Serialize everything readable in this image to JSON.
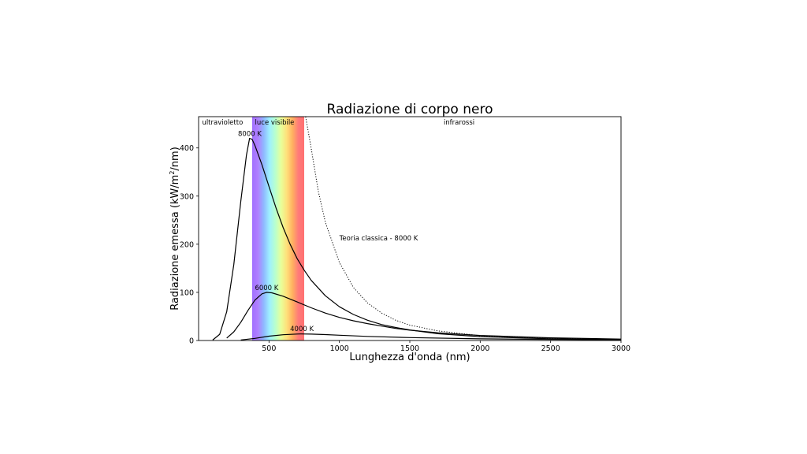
{
  "chart_data": {
    "type": "line",
    "title": "Radiazione di corpo nero",
    "xlabel": "Lunghezza d'onda (nm)",
    "ylabel_main": "Radiazione emessa (kW/m",
    "ylabel_sup": "2",
    "ylabel_end": "/nm)",
    "xlim": [
      0,
      3000
    ],
    "ylim": [
      0,
      465
    ],
    "x_ticks": [
      500,
      1000,
      1500,
      2000,
      2500,
      3000
    ],
    "y_ticks": [
      0,
      100,
      200,
      300,
      400
    ],
    "grid": false,
    "regions": [
      {
        "label": "ultravioletto",
        "x": 170
      },
      {
        "label": "luce visibile",
        "x": 540
      },
      {
        "label": "infrarossi",
        "x": 1850
      }
    ],
    "visible_band": [
      380,
      750
    ],
    "series": [
      {
        "name": "8000 K",
        "style": "solid",
        "points": [
          [
            100,
            1
          ],
          [
            150,
            13
          ],
          [
            200,
            60
          ],
          [
            250,
            158
          ],
          [
            300,
            290
          ],
          [
            340,
            385
          ],
          [
            362,
            420
          ],
          [
            380,
            418
          ],
          [
            400,
            405
          ],
          [
            450,
            365
          ],
          [
            500,
            320
          ],
          [
            550,
            275
          ],
          [
            600,
            235
          ],
          [
            650,
            200
          ],
          [
            700,
            170
          ],
          [
            750,
            146
          ],
          [
            800,
            125
          ],
          [
            900,
            93
          ],
          [
            1000,
            70
          ],
          [
            1100,
            54
          ],
          [
            1200,
            42
          ],
          [
            1300,
            33
          ],
          [
            1400,
            27
          ],
          [
            1500,
            22
          ],
          [
            1700,
            14
          ],
          [
            2000,
            8
          ],
          [
            2500,
            3.5
          ],
          [
            3000,
            1.7
          ]
        ]
      },
      {
        "name": "6000 K",
        "style": "solid",
        "points": [
          [
            200,
            5
          ],
          [
            250,
            18
          ],
          [
            300,
            38
          ],
          [
            350,
            62
          ],
          [
            400,
            84
          ],
          [
            450,
            97
          ],
          [
            483,
            100
          ],
          [
            520,
            99
          ],
          [
            600,
            92
          ],
          [
            700,
            80
          ],
          [
            800,
            68
          ],
          [
            900,
            57
          ],
          [
            1000,
            48
          ],
          [
            1100,
            41
          ],
          [
            1200,
            35
          ],
          [
            1300,
            30
          ],
          [
            1400,
            25
          ],
          [
            1500,
            21.5
          ],
          [
            1700,
            16
          ],
          [
            2000,
            10.5
          ],
          [
            2500,
            5.5
          ],
          [
            3000,
            3
          ]
        ]
      },
      {
        "name": "4000 K",
        "style": "solid",
        "points": [
          [
            300,
            1.2
          ],
          [
            400,
            4.5
          ],
          [
            500,
            9
          ],
          [
            600,
            12
          ],
          [
            700,
            13.4
          ],
          [
            725,
            13.6
          ],
          [
            800,
            13.3
          ],
          [
            900,
            12.3
          ],
          [
            1000,
            11
          ],
          [
            1200,
            8.5
          ],
          [
            1500,
            6
          ],
          [
            2000,
            3.5
          ],
          [
            2500,
            2.2
          ],
          [
            3000,
            1.4
          ]
        ]
      },
      {
        "name": "Teoria classica - 8000 K",
        "style": "dotted",
        "points": [
          [
            760,
            465
          ],
          [
            800,
            399
          ],
          [
            850,
            310
          ],
          [
            900,
            246
          ],
          [
            1000,
            162
          ],
          [
            1100,
            110
          ],
          [
            1200,
            78
          ],
          [
            1300,
            57
          ],
          [
            1400,
            42
          ],
          [
            1500,
            32
          ],
          [
            1700,
            20
          ],
          [
            2000,
            10
          ],
          [
            2500,
            4.2
          ],
          [
            3000,
            2
          ]
        ]
      }
    ],
    "curve_labels": [
      {
        "text": "8000 K",
        "x": 280,
        "y": 425
      },
      {
        "text": "6000 K",
        "x": 400,
        "y": 105
      },
      {
        "text": "4000 K",
        "x": 650,
        "y": 20
      },
      {
        "text": "Teoria classica - 8000 K",
        "x": 1000,
        "y": 208
      }
    ],
    "colors": {
      "line": "#000000",
      "band_gradient": [
        "#a070ff",
        "#b080ff",
        "#8fb8ff",
        "#9ef0ff",
        "#b8ffcf",
        "#e8ff9a",
        "#ffe07a",
        "#ffb060",
        "#ff7a7a",
        "#ff7070"
      ]
    }
  }
}
